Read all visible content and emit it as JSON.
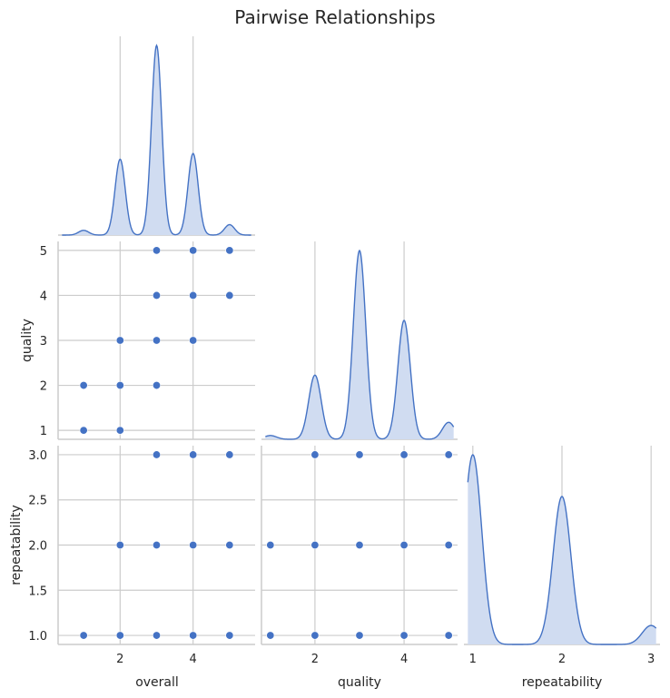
{
  "chart_data": {
    "type": "scatter",
    "title": "Pairwise Relationships",
    "variables": [
      "overall",
      "quality",
      "repeatability"
    ],
    "color": "#4472c4",
    "fill_color": "#d0dcf1",
    "grid": true,
    "corner": true,
    "diagonal_type": "kde",
    "axis_ranges": {
      "overall": [
        0.3,
        5.7
      ],
      "quality": [
        0.8,
        5.2
      ],
      "repeatability": [
        0.9,
        3.1
      ]
    },
    "ticks": {
      "overall": [
        2,
        4
      ],
      "quality": [
        1,
        2,
        3,
        4,
        5
      ],
      "repeatability": [
        1.0,
        1.5,
        2.0,
        2.5,
        3.0
      ]
    },
    "tick_labels": {
      "overall": [
        "2",
        "4"
      ],
      "quality_y": [
        "1",
        "2",
        "3",
        "4",
        "5"
      ],
      "quality_x": [
        "2",
        "4"
      ],
      "repeatability_y": [
        "1.0",
        "1.5",
        "2.0",
        "2.5",
        "3.0"
      ],
      "repeatability_x": [
        "1",
        "2",
        "3"
      ]
    },
    "scatter_panels": [
      {
        "x": "overall",
        "y": "quality",
        "points": [
          [
            1,
            1
          ],
          [
            2,
            1
          ],
          [
            1,
            2
          ],
          [
            2,
            2
          ],
          [
            3,
            2
          ],
          [
            2,
            3
          ],
          [
            3,
            3
          ],
          [
            4,
            3
          ],
          [
            3,
            4
          ],
          [
            4,
            4
          ],
          [
            5,
            4
          ],
          [
            3,
            5
          ],
          [
            4,
            5
          ],
          [
            5,
            5
          ]
        ]
      },
      {
        "x": "overall",
        "y": "repeatability",
        "points": [
          [
            1,
            1
          ],
          [
            2,
            1
          ],
          [
            3,
            1
          ],
          [
            4,
            1
          ],
          [
            5,
            1
          ],
          [
            2,
            2
          ],
          [
            3,
            2
          ],
          [
            4,
            2
          ],
          [
            5,
            2
          ],
          [
            3,
            3
          ],
          [
            4,
            3
          ],
          [
            5,
            3
          ]
        ]
      },
      {
        "x": "quality",
        "y": "repeatability",
        "points": [
          [
            1,
            1
          ],
          [
            2,
            1
          ],
          [
            3,
            1
          ],
          [
            4,
            1
          ],
          [
            5,
            1
          ],
          [
            1,
            2
          ],
          [
            2,
            2
          ],
          [
            3,
            2
          ],
          [
            4,
            2
          ],
          [
            5,
            2
          ],
          [
            2,
            3
          ],
          [
            3,
            3
          ],
          [
            4,
            3
          ],
          [
            5,
            3
          ]
        ]
      }
    ],
    "kde_panels": [
      {
        "variable": "overall",
        "peaks": [
          {
            "center": 1,
            "height": 0.025
          },
          {
            "center": 2,
            "height": 0.4
          },
          {
            "center": 3,
            "height": 1.0
          },
          {
            "center": 4,
            "height": 0.43
          },
          {
            "center": 5,
            "height": 0.055
          }
        ],
        "bandwidth": 0.14
      },
      {
        "variable": "quality",
        "peaks": [
          {
            "center": 1,
            "height": 0.02
          },
          {
            "center": 2,
            "height": 0.34
          },
          {
            "center": 3,
            "height": 1.0
          },
          {
            "center": 4,
            "height": 0.63
          },
          {
            "center": 5,
            "height": 0.09
          }
        ],
        "bandwidth": 0.14
      },
      {
        "variable": "repeatability",
        "peaks": [
          {
            "center": 1,
            "height": 1.0
          },
          {
            "center": 2,
            "height": 0.78
          },
          {
            "center": 3,
            "height": 0.1
          }
        ],
        "bandwidth": 0.1
      }
    ]
  }
}
